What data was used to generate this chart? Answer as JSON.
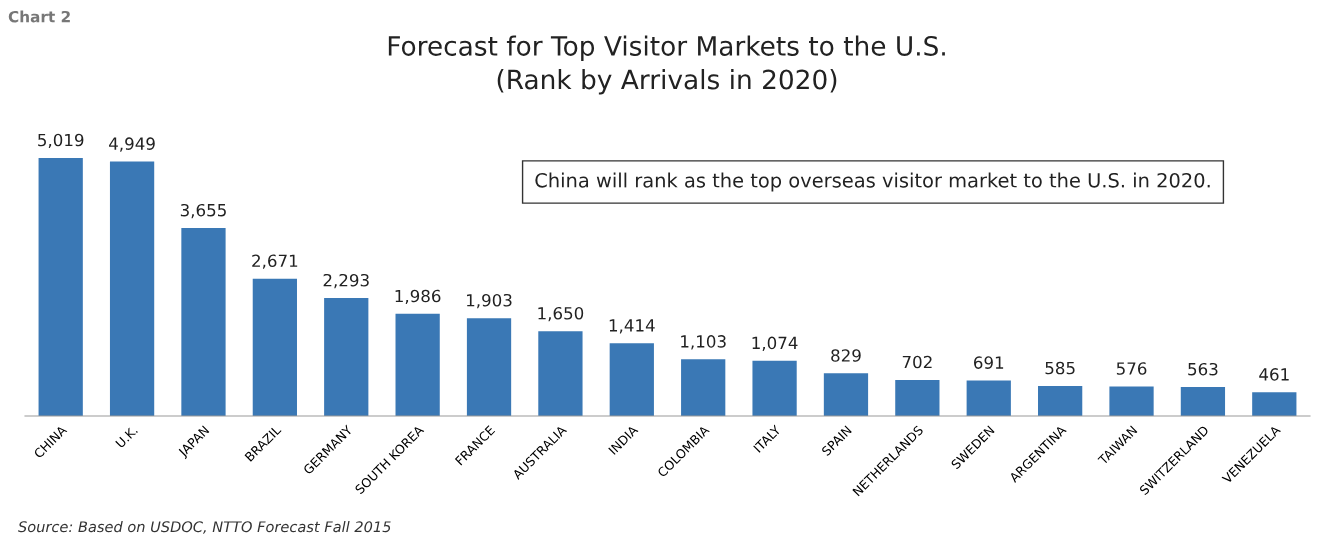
{
  "chart_data": {
    "type": "bar",
    "title": "Forecast for Top Visitor Markets to the U.S.\n(Rank by Arrivals in 2020)",
    "categories": [
      "CHINA",
      "U.K.",
      "JAPAN",
      "BRAZIL",
      "GERMANY",
      "SOUTH KOREA",
      "FRANCE",
      "AUSTRALIA",
      "INDIA",
      "COLOMBIA",
      "ITALY",
      "SPAIN",
      "NETHERLANDS",
      "SWEDEN",
      "ARGENTINA",
      "TAIWAN",
      "SWITZERLAND",
      "VENEZUELA"
    ],
    "values": [
      5019,
      4949,
      3655,
      2671,
      2293,
      1986,
      1903,
      1650,
      1414,
      1103,
      1074,
      829,
      702,
      691,
      585,
      576,
      563,
      461
    ],
    "value_labels": [
      "5,019",
      "4,949",
      "3,655",
      "2,671",
      "2,293",
      "1,986",
      "1,903",
      "1,650",
      "1,414",
      "1,103",
      "1,074",
      "829",
      "702",
      "691",
      "585",
      "576",
      "563",
      "461"
    ],
    "color": "#3a78b5",
    "annotations": [
      "Chart 2",
      "China will rank as the top overseas visitor market to the U.S. in 2020.",
      "Source: Based on USDOC, NTTO Forecast Fall 2015"
    ],
    "grid": false,
    "legend": false
  }
}
